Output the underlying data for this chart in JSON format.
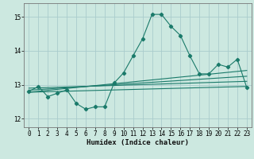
{
  "xlabel": "Humidex (Indice chaleur)",
  "bg_color": "#cce8e0",
  "grid_color": "#aacccc",
  "line_color": "#1a7a6a",
  "xlim": [
    -0.5,
    23.5
  ],
  "ylim": [
    11.75,
    15.4
  ],
  "yticks": [
    12,
    13,
    14,
    15
  ],
  "xticks": [
    0,
    1,
    2,
    3,
    4,
    5,
    6,
    7,
    8,
    9,
    10,
    11,
    12,
    13,
    14,
    15,
    16,
    17,
    18,
    19,
    20,
    21,
    22,
    23
  ],
  "main_line_x": [
    0,
    1,
    2,
    3,
    4,
    5,
    6,
    7,
    8,
    9,
    10,
    11,
    12,
    13,
    14,
    15,
    16,
    17,
    18,
    19,
    20,
    21,
    22,
    23
  ],
  "main_line_y": [
    12.8,
    12.95,
    12.65,
    12.75,
    12.85,
    12.45,
    12.28,
    12.35,
    12.35,
    13.05,
    13.35,
    13.85,
    14.35,
    15.07,
    15.07,
    14.72,
    14.45,
    13.85,
    13.32,
    13.32,
    13.6,
    13.52,
    13.75,
    12.92
  ],
  "line2_x": [
    0,
    23
  ],
  "line2_y": [
    12.78,
    13.42
  ],
  "line3_x": [
    0,
    23
  ],
  "line3_y": [
    12.84,
    13.25
  ],
  "line4_x": [
    0,
    23
  ],
  "line4_y": [
    12.9,
    13.1
  ],
  "line5_x": [
    0,
    23
  ],
  "line5_y": [
    12.78,
    12.95
  ],
  "tick_fontsize": 5.5,
  "xlabel_fontsize": 6.5
}
